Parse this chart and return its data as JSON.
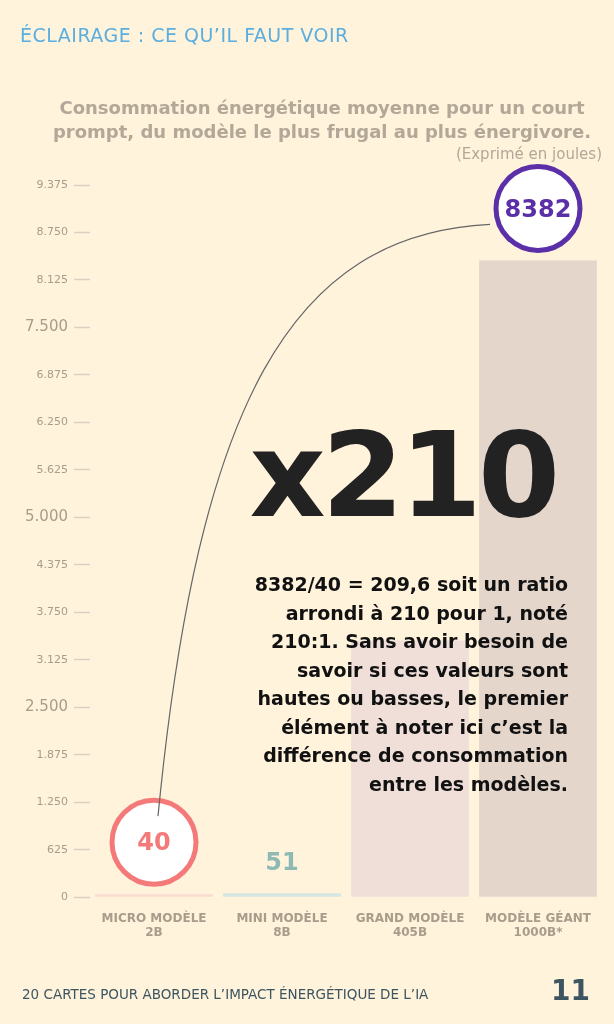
{
  "chart_data": {
    "type": "bar",
    "title": "Consommation énergétique moyenne pour un court prompt, du modèle le plus frugal au plus énergivore.",
    "subtitle": "(Exprimé en joules)",
    "categories": [
      "MICRO MODÈLE\n2B",
      "MINI MODÈLE\n8B",
      "GRAND MODÈLE\n405B",
      "MODÈLE GÉANT\n1000B*"
    ],
    "values": [
      40,
      51,
      3380,
      8382
    ],
    "colors": [
      "#f7dccf",
      "#d6e6e2",
      "#efdfd8",
      "#e5d6cc"
    ],
    "value_labels": [
      "40",
      "51",
      null,
      "8382"
    ],
    "ylim": [
      0,
      9375
    ],
    "yticks": [
      {
        "value": 0,
        "label": "0"
      },
      {
        "value": 625,
        "label": "625"
      },
      {
        "value": 1250,
        "label": "1.250"
      },
      {
        "value": 1875,
        "label": "1.875"
      },
      {
        "value": 2500,
        "label": "2.500"
      },
      {
        "value": 3125,
        "label": "3.125"
      },
      {
        "value": 3750,
        "label": "3.750"
      },
      {
        "value": 4375,
        "label": "4.375"
      },
      {
        "value": 5000,
        "label": "5.000"
      },
      {
        "value": 5625,
        "label": "5.625"
      },
      {
        "value": 6250,
        "label": "6.250"
      },
      {
        "value": 6875,
        "label": "6.875"
      },
      {
        "value": 7500,
        "label": "7.500"
      },
      {
        "value": 8125,
        "label": "8.125"
      },
      {
        "value": 8750,
        "label": "8.750"
      },
      {
        "value": 9375,
        "label": "9.375"
      }
    ],
    "grid": false,
    "legend": false,
    "annotations": [
      "ÉCLAIRAGE : CE QU’IL FAUT VOIR",
      "x210",
      "8382/40 = 209,6 soit un ratio arrondi à 210 pour 1, noté 210:1. Sans avoir besoin de savoir si ces valeurs sont hautes ou basses, le premier élément à noter ici c’est la différence de consommation entre les modèles.",
      "20 CARTES POUR ABORDER L’IMPACT ÉNERGÉTIQUE DE L’IA",
      "11"
    ]
  }
}
